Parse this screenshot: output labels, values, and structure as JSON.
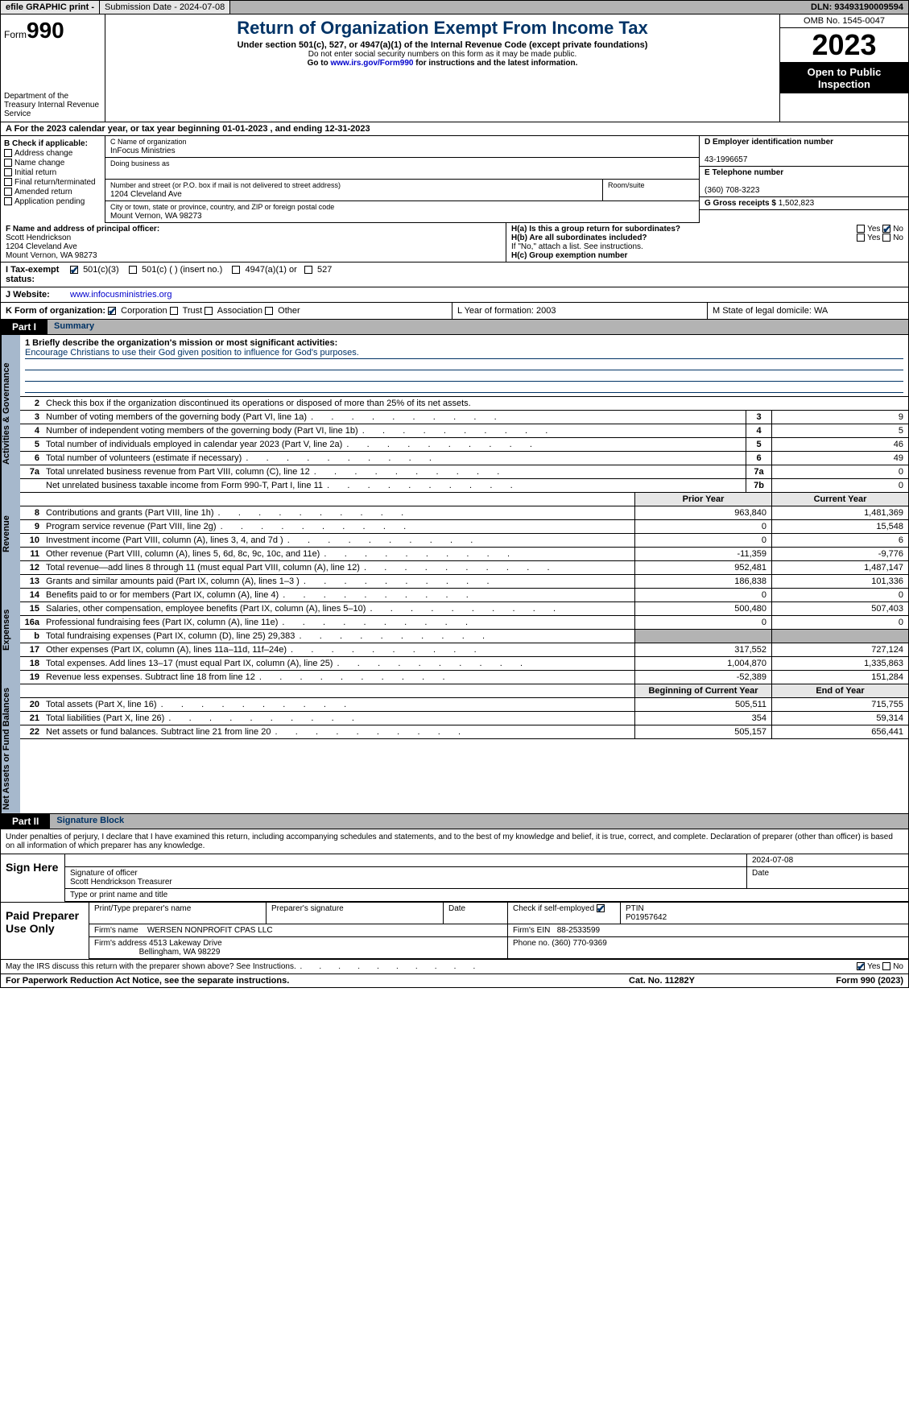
{
  "topbar": {
    "efile": "efile GRAPHIC print -",
    "submission": "Submission Date - 2024-07-08",
    "dln": "DLN: 93493190009594"
  },
  "header": {
    "form_label": "Form",
    "form_num": "990",
    "dept": "Department of the Treasury\nInternal Revenue Service",
    "title": "Return of Organization Exempt From Income Tax",
    "sub1": "Under section 501(c), 527, or 4947(a)(1) of the Internal Revenue Code (except private foundations)",
    "sub2": "Do not enter social security numbers on this form as it may be made public.",
    "sub3_pre": "Go to ",
    "sub3_link": "www.irs.gov/Form990",
    "sub3_post": " for instructions and the latest information.",
    "omb": "OMB No. 1545-0047",
    "year": "2023",
    "open": "Open to Public Inspection"
  },
  "rowA": "A For the 2023 calendar year, or tax year beginning 01-01-2023    , and ending 12-31-2023",
  "boxB": {
    "title": "B Check if applicable:",
    "items": [
      "Address change",
      "Name change",
      "Initial return",
      "Final return/terminated",
      "Amended return",
      "Application pending"
    ]
  },
  "boxC": {
    "name_lbl": "C Name of organization",
    "name": "InFocus Ministries",
    "dba_lbl": "Doing business as",
    "addr_lbl": "Number and street (or P.O. box if mail is not delivered to street address)",
    "addr": "1204 Cleveland Ave",
    "room_lbl": "Room/suite",
    "city_lbl": "City or town, state or province, country, and ZIP or foreign postal code",
    "city": "Mount Vernon, WA  98273"
  },
  "boxD": {
    "lbl": "D Employer identification number",
    "val": "43-1996657"
  },
  "boxE": {
    "lbl": "E Telephone number",
    "val": "(360) 708-3223"
  },
  "boxG": {
    "lbl": "G Gross receipts $",
    "val": "1,502,823"
  },
  "boxF": {
    "lbl": "F  Name and address of principal officer:",
    "name": "Scott Hendrickson",
    "addr1": "1204 Cleveland Ave",
    "addr2": "Mount Vernon, WA  98273"
  },
  "boxH": {
    "a": "H(a)  Is this a group return for subordinates?",
    "b": "H(b)  Are all subordinates included?",
    "note": "If \"No,\" attach a list. See instructions.",
    "c": "H(c)  Group exemption number",
    "yes": "Yes",
    "no": "No"
  },
  "rowI": {
    "lbl": "I   Tax-exempt status:",
    "opts": [
      "501(c)(3)",
      "501(c) (  ) (insert no.)",
      "4947(a)(1) or",
      "527"
    ]
  },
  "rowJ": {
    "lbl": "J   Website:",
    "val": "www.infocusministries.org"
  },
  "rowK": {
    "lbl": "K Form of organization:",
    "opts": [
      "Corporation",
      "Trust",
      "Association",
      "Other"
    ]
  },
  "rowL": "L Year of formation: 2003",
  "rowM": "M State of legal domicile: WA",
  "part1": {
    "tag": "Part I",
    "title": "Summary"
  },
  "mission": {
    "q": "1   Briefly describe the organization's mission or most significant activities:",
    "a": "Encourage Christians to use their God given position to influence for God's purposes."
  },
  "line2": "Check this box      if the organization discontinued its operations or disposed of more than 25% of its net assets.",
  "govRows": [
    {
      "n": "3",
      "d": "Number of voting members of the governing body (Part VI, line 1a)",
      "b": "3",
      "v": "9"
    },
    {
      "n": "4",
      "d": "Number of independent voting members of the governing body (Part VI, line 1b)",
      "b": "4",
      "v": "5"
    },
    {
      "n": "5",
      "d": "Total number of individuals employed in calendar year 2023 (Part V, line 2a)",
      "b": "5",
      "v": "46"
    },
    {
      "n": "6",
      "d": "Total number of volunteers (estimate if necessary)",
      "b": "6",
      "v": "49"
    },
    {
      "n": "7a",
      "d": "Total unrelated business revenue from Part VIII, column (C), line 12",
      "b": "7a",
      "v": "0"
    },
    {
      "n": "",
      "d": "Net unrelated business taxable income from Form 990-T, Part I, line 11",
      "b": "7b",
      "v": "0"
    }
  ],
  "pycy": {
    "prior": "Prior Year",
    "current": "Current Year"
  },
  "revRows": [
    {
      "n": "8",
      "d": "Contributions and grants (Part VIII, line 1h)",
      "p": "963,840",
      "c": "1,481,369"
    },
    {
      "n": "9",
      "d": "Program service revenue (Part VIII, line 2g)",
      "p": "0",
      "c": "15,548"
    },
    {
      "n": "10",
      "d": "Investment income (Part VIII, column (A), lines 3, 4, and 7d )",
      "p": "0",
      "c": "6"
    },
    {
      "n": "11",
      "d": "Other revenue (Part VIII, column (A), lines 5, 6d, 8c, 9c, 10c, and 11e)",
      "p": "-11,359",
      "c": "-9,776"
    },
    {
      "n": "12",
      "d": "Total revenue—add lines 8 through 11 (must equal Part VIII, column (A), line 12)",
      "p": "952,481",
      "c": "1,487,147"
    }
  ],
  "expRows": [
    {
      "n": "13",
      "d": "Grants and similar amounts paid (Part IX, column (A), lines 1–3 )",
      "p": "186,838",
      "c": "101,336"
    },
    {
      "n": "14",
      "d": "Benefits paid to or for members (Part IX, column (A), line 4)",
      "p": "0",
      "c": "0"
    },
    {
      "n": "15",
      "d": "Salaries, other compensation, employee benefits (Part IX, column (A), lines 5–10)",
      "p": "500,480",
      "c": "507,403"
    },
    {
      "n": "16a",
      "d": "Professional fundraising fees (Part IX, column (A), line 11e)",
      "p": "0",
      "c": "0"
    },
    {
      "n": "b",
      "d": "Total fundraising expenses (Part IX, column (D), line 25) 29,383",
      "p": "",
      "c": "",
      "shade": true
    },
    {
      "n": "17",
      "d": "Other expenses (Part IX, column (A), lines 11a–11d, 11f–24e)",
      "p": "317,552",
      "c": "727,124"
    },
    {
      "n": "18",
      "d": "Total expenses. Add lines 13–17 (must equal Part IX, column (A), line 25)",
      "p": "1,004,870",
      "c": "1,335,863"
    },
    {
      "n": "19",
      "d": "Revenue less expenses. Subtract line 18 from line 12",
      "p": "-52,389",
      "c": "151,284"
    }
  ],
  "balHdr": {
    "b": "Beginning of Current Year",
    "e": "End of Year"
  },
  "balRows": [
    {
      "n": "20",
      "d": "Total assets (Part X, line 16)",
      "p": "505,511",
      "c": "715,755"
    },
    {
      "n": "21",
      "d": "Total liabilities (Part X, line 26)",
      "p": "354",
      "c": "59,314"
    },
    {
      "n": "22",
      "d": "Net assets or fund balances. Subtract line 21 from line 20",
      "p": "505,157",
      "c": "656,441"
    }
  ],
  "vtabs": {
    "gov": "Activities & Governance",
    "rev": "Revenue",
    "exp": "Expenses",
    "bal": "Net Assets or Fund Balances"
  },
  "part2": {
    "tag": "Part II",
    "title": "Signature Block"
  },
  "sigtxt": "Under penalties of perjury, I declare that I have examined this return, including accompanying schedules and statements, and to the best of my knowledge and belief, it is true, correct, and complete. Declaration of preparer (other than officer) is based on all information of which preparer has any knowledge.",
  "sign": {
    "here": "Sign Here",
    "sig_lbl": "Signature of officer",
    "date_lbl": "Date",
    "date": "2024-07-08",
    "name": "Scott Hendrickson Treasurer",
    "name_lbl": "Type or print name and title"
  },
  "prep": {
    "lbl": "Paid Preparer Use Only",
    "c1": "Print/Type preparer's name",
    "c2": "Preparer's signature",
    "c3": "Date",
    "c4": "Check        if self-employed",
    "c5": "PTIN",
    "ptin": "P01957642",
    "firm_lbl": "Firm's name",
    "firm": "WERSEN NONPROFIT CPAS LLC",
    "ein_lbl": "Firm's EIN",
    "ein": "88-2533599",
    "addr_lbl": "Firm's address",
    "addr1": "4513 Lakeway Drive",
    "addr2": "Bellingham, WA  98229",
    "phone_lbl": "Phone no.",
    "phone": "(360) 770-9369"
  },
  "discuss": "May the IRS discuss this return with the preparer shown above? See Instructions.",
  "footer": {
    "l": "For Paperwork Reduction Act Notice, see the separate instructions.",
    "m": "Cat. No. 11282Y",
    "r": "Form 990 (2023)"
  }
}
